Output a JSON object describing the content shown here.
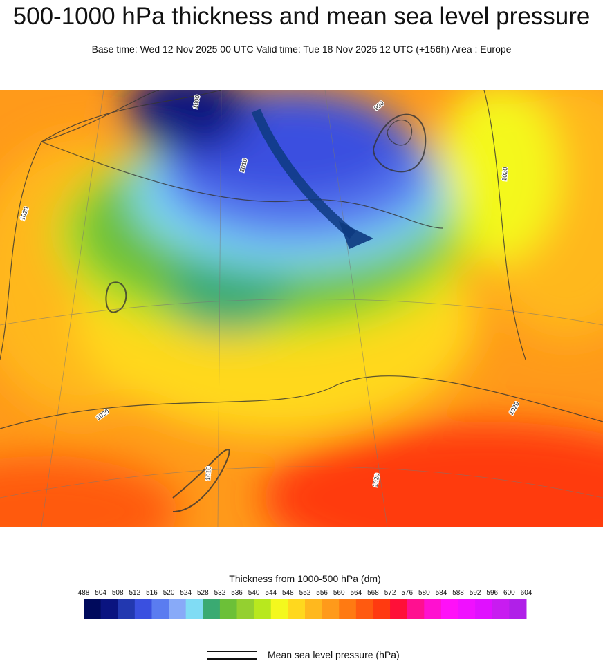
{
  "header": {
    "title": "500-1000 hPa thickness and mean sea level pressure",
    "subtitle": "Base time: Wed 12 Nov 2025 00 UTC Valid time: Tue 18 Nov 2025 12 UTC (+156h) Area : Europe"
  },
  "map": {
    "contour_labels": [
      "1020",
      "1020",
      "1020",
      "1020",
      "990",
      "1010",
      "1000",
      "1010",
      "1020"
    ]
  },
  "colorbar": {
    "title": "Thickness from 1000-500 hPa (dm)",
    "ticks": [
      488,
      504,
      508,
      512,
      516,
      520,
      524,
      528,
      532,
      536,
      540,
      544,
      548,
      552,
      556,
      560,
      564,
      568,
      572,
      576,
      580,
      584,
      588,
      592,
      596,
      600,
      604
    ],
    "colors": [
      "#000a5c",
      "#0a1480",
      "#2238b0",
      "#3a50e0",
      "#5a7cf0",
      "#88aaf8",
      "#80dcf4",
      "#3aaa72",
      "#6cc038",
      "#94d030",
      "#b8e81e",
      "#f4f81e",
      "#ffd81e",
      "#ffb81e",
      "#ff9a1a",
      "#ff7a12",
      "#ff5a10",
      "#ff3a10",
      "#ff1038",
      "#ff1090",
      "#ff10d0",
      "#ff10f8",
      "#f010ff",
      "#e010ff",
      "#c81cf0",
      "#b020e8"
    ]
  },
  "legend": {
    "label": "Mean sea level pressure (hPa)"
  }
}
